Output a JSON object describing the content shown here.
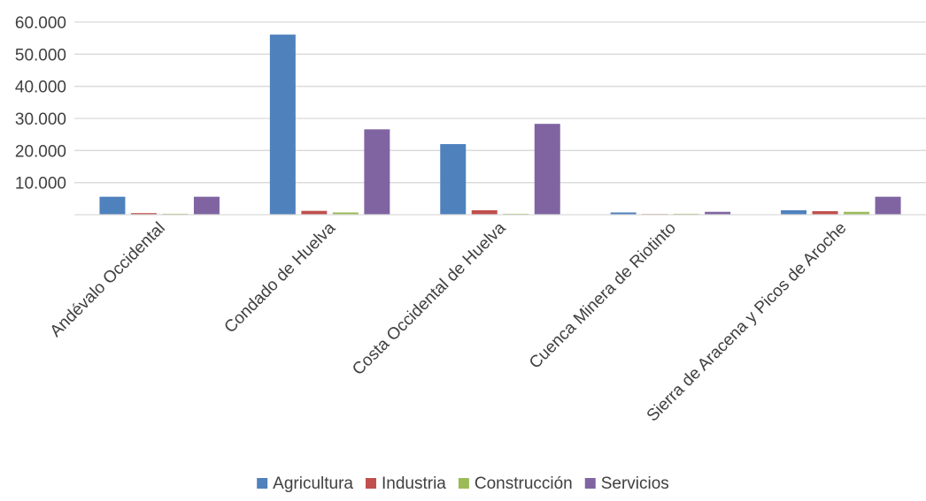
{
  "chart_data": {
    "type": "bar",
    "categories": [
      "Andévalo Occidental",
      "Condado de Huelva",
      "Costa Occidental de Huelva",
      "Cuenca Minera de Riotinto",
      "Sierra de Aracena y Picos de Aroche"
    ],
    "series": [
      {
        "name": "Agricultura",
        "color": "#4f81bd",
        "values": [
          5600,
          56100,
          22000,
          700,
          1400
        ]
      },
      {
        "name": "Industria",
        "color": "#c0504d",
        "values": [
          500,
          1200,
          1400,
          200,
          1100
        ]
      },
      {
        "name": "Construcción",
        "color": "#9bbb59",
        "values": [
          300,
          700,
          300,
          300,
          900
        ]
      },
      {
        "name": "Servicios",
        "color": "#8064a2",
        "values": [
          5600,
          26600,
          28300,
          900,
          5600
        ]
      }
    ],
    "yticks": [
      "10.000",
      "20.000",
      "30.000",
      "40.000",
      "50.000",
      "60.000"
    ],
    "ytick_values": [
      10000,
      20000,
      30000,
      40000,
      50000,
      60000
    ],
    "ylim": [
      0,
      60000
    ],
    "title": "",
    "xlabel": "",
    "ylabel": "",
    "grid": true,
    "legend_position": "bottom"
  }
}
